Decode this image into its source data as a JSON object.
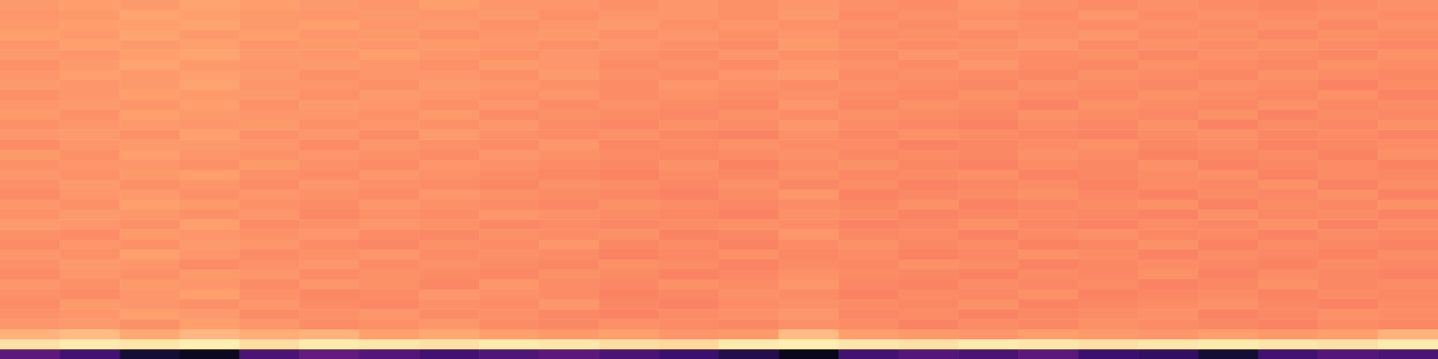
{
  "chart_data": {
    "type": "heatmap",
    "tick_labels": false,
    "zlim": [
      0,
      100
    ],
    "cells": [
      [
        28,
        22,
        10,
        6,
        24,
        30,
        26,
        22,
        25,
        28,
        24,
        20,
        14,
        5,
        22,
        26,
        24,
        28,
        20,
        18,
        10,
        22,
        26,
        24
      ],
      [
        94,
        96,
        95,
        97,
        93,
        96,
        95,
        94,
        96,
        95,
        93,
        92,
        96,
        97,
        95,
        94,
        96,
        95,
        94,
        95,
        96,
        95,
        94,
        96
      ],
      [
        84,
        86,
        82,
        85,
        83,
        84,
        80,
        82,
        80,
        79,
        80,
        78,
        79,
        86,
        80,
        79,
        78,
        80,
        79,
        78,
        80,
        79,
        80,
        84
      ],
      [
        78,
        79,
        77,
        80,
        78,
        76,
        77,
        78,
        76,
        75,
        77,
        76,
        75,
        77,
        76,
        74,
        76,
        75,
        77,
        76,
        75,
        74,
        76,
        75
      ],
      [
        77,
        78,
        80,
        79,
        76,
        77,
        78,
        76,
        77,
        75,
        74,
        76,
        77,
        78,
        75,
        76,
        74,
        75,
        76,
        77,
        74,
        75,
        77,
        76
      ],
      [
        76,
        79,
        78,
        77,
        78,
        76,
        75,
        77,
        76,
        78,
        75,
        74,
        76,
        77,
        76,
        75,
        77,
        74,
        75,
        76,
        77,
        75,
        74,
        76
      ],
      [
        77,
        76,
        78,
        80,
        77,
        75,
        76,
        78,
        77,
        76,
        74,
        75,
        77,
        76,
        74,
        76,
        75,
        77,
        74,
        75,
        76,
        74,
        76,
        75
      ],
      [
        78,
        77,
        79,
        78,
        76,
        78,
        77,
        75,
        78,
        76,
        75,
        77,
        76,
        78,
        75,
        74,
        76,
        75,
        76,
        74,
        75,
        77,
        75,
        76
      ],
      [
        76,
        78,
        77,
        79,
        78,
        76,
        77,
        76,
        75,
        77,
        76,
        74,
        75,
        77,
        76,
        75,
        74,
        76,
        75,
        77,
        74,
        76,
        75,
        74
      ],
      [
        77,
        79,
        78,
        76,
        77,
        78,
        76,
        77,
        76,
        75,
        77,
        76,
        74,
        76,
        75,
        77,
        76,
        74,
        75,
        76,
        75,
        74,
        76,
        75
      ],
      [
        78,
        77,
        80,
        78,
        76,
        77,
        78,
        76,
        77,
        76,
        74,
        75,
        77,
        75,
        76,
        74,
        75,
        77,
        76,
        74,
        76,
        75,
        74,
        76
      ],
      [
        76,
        78,
        77,
        79,
        78,
        76,
        75,
        77,
        76,
        78,
        75,
        76,
        74,
        76,
        77,
        75,
        76,
        74,
        75,
        77,
        74,
        76,
        75,
        74
      ],
      [
        77,
        76,
        79,
        78,
        77,
        78,
        76,
        75,
        77,
        76,
        77,
        74,
        75,
        78,
        75,
        76,
        74,
        76,
        77,
        75,
        76,
        74,
        76,
        75
      ],
      [
        79,
        78,
        77,
        80,
        76,
        77,
        78,
        77,
        75,
        76,
        75,
        76,
        77,
        76,
        74,
        75,
        77,
        75,
        74,
        76,
        75,
        77,
        74,
        76
      ],
      [
        77,
        79,
        78,
        77,
        78,
        75,
        77,
        76,
        78,
        77,
        76,
        75,
        74,
        77,
        76,
        74,
        75,
        76,
        75,
        74,
        77,
        75,
        76,
        74
      ],
      [
        78,
        77,
        80,
        79,
        77,
        76,
        78,
        77,
        76,
        75,
        77,
        76,
        75,
        76,
        75,
        77,
        74,
        75,
        76,
        77,
        74,
        76,
        75,
        77
      ],
      [
        76,
        78,
        79,
        77,
        78,
        77,
        76,
        78,
        77,
        76,
        75,
        74,
        76,
        78,
        74,
        75,
        76,
        77,
        75,
        74,
        76,
        75,
        77,
        74
      ],
      [
        77,
        79,
        77,
        78,
        76,
        78,
        77,
        76,
        75,
        77,
        76,
        75,
        77,
        75,
        76,
        74,
        75,
        76,
        74,
        76,
        75,
        77,
        74,
        76
      ],
      [
        78,
        77,
        79,
        80,
        77,
        76,
        78,
        77,
        76,
        75,
        74,
        76,
        75,
        77,
        75,
        76,
        77,
        74,
        75,
        76,
        77,
        74,
        76,
        75
      ],
      [
        77,
        78,
        78,
        77,
        79,
        77,
        76,
        78,
        77,
        76,
        75,
        77,
        74,
        76,
        77,
        75,
        74,
        76,
        75,
        77,
        74,
        75,
        76,
        74
      ],
      [
        79,
        77,
        80,
        78,
        77,
        78,
        77,
        76,
        78,
        77,
        76,
        75,
        76,
        77,
        75,
        76,
        75,
        77,
        76,
        74,
        75,
        76,
        74,
        77
      ],
      [
        76,
        78,
        79,
        79,
        78,
        76,
        78,
        77,
        76,
        78,
        75,
        76,
        77,
        76,
        76,
        74,
        75,
        76,
        77,
        75,
        76,
        74,
        75,
        76
      ],
      [
        78,
        79,
        77,
        80,
        77,
        78,
        76,
        79,
        77,
        76,
        77,
        75,
        74,
        77,
        75,
        77,
        76,
        75,
        74,
        76,
        77,
        75,
        76,
        74
      ],
      [
        77,
        78,
        79,
        78,
        79,
        77,
        78,
        77,
        78,
        76,
        75,
        77,
        76,
        78,
        76,
        75,
        74,
        76,
        75,
        77,
        74,
        76,
        75,
        77
      ],
      [
        79,
        77,
        80,
        79,
        78,
        78,
        77,
        79,
        76,
        77,
        76,
        75,
        77,
        76,
        77,
        76,
        75,
        77,
        76,
        75,
        77,
        74,
        76,
        75
      ],
      [
        78,
        79,
        78,
        80,
        77,
        79,
        78,
        77,
        78,
        76,
        77,
        76,
        75,
        78,
        75,
        77,
        76,
        74,
        77,
        76,
        75,
        77,
        75,
        76
      ],
      [
        77,
        78,
        80,
        79,
        79,
        77,
        79,
        78,
        77,
        78,
        76,
        77,
        76,
        77,
        76,
        75,
        77,
        76,
        75,
        77,
        76,
        75,
        77,
        74
      ],
      [
        79,
        78,
        79,
        81,
        78,
        78,
        77,
        79,
        78,
        77,
        76,
        78,
        77,
        76,
        77,
        76,
        75,
        77,
        76,
        75,
        77,
        76,
        74,
        76
      ],
      [
        78,
        80,
        79,
        80,
        79,
        77,
        78,
        78,
        77,
        79,
        77,
        76,
        78,
        79,
        76,
        77,
        76,
        75,
        77,
        76,
        75,
        77,
        76,
        75
      ],
      [
        77,
        79,
        81,
        79,
        78,
        79,
        78,
        77,
        79,
        78,
        76,
        77,
        76,
        78,
        77,
        76,
        78,
        76,
        75,
        77,
        76,
        75,
        77,
        76
      ],
      [
        79,
        78,
        80,
        81,
        79,
        78,
        80,
        78,
        77,
        78,
        77,
        76,
        78,
        77,
        76,
        78,
        77,
        76,
        77,
        75,
        77,
        76,
        75,
        77
      ],
      [
        78,
        80,
        79,
        80,
        78,
        79,
        78,
        79,
        78,
        77,
        78,
        77,
        76,
        79,
        77,
        76,
        77,
        78,
        76,
        77,
        76,
        77,
        76,
        75
      ],
      [
        80,
        79,
        81,
        79,
        80,
        78,
        79,
        77,
        78,
        79,
        77,
        78,
        77,
        78,
        76,
        77,
        76,
        77,
        78,
        76,
        77,
        75,
        77,
        76
      ],
      [
        79,
        80,
        80,
        81,
        79,
        80,
        78,
        79,
        77,
        78,
        79,
        77,
        78,
        77,
        77,
        76,
        78,
        77,
        76,
        77,
        76,
        77,
        75,
        77
      ],
      [
        78,
        79,
        81,
        80,
        79,
        78,
        79,
        78,
        79,
        77,
        78,
        78,
        77,
        79,
        76,
        77,
        77,
        76,
        78,
        76,
        77,
        76,
        77,
        76
      ],
      [
        79,
        80,
        79,
        81,
        80,
        79,
        78,
        80,
        78,
        78,
        77,
        78,
        77,
        78,
        77,
        76,
        78,
        77,
        76,
        77,
        76,
        75,
        76,
        77
      ]
    ]
  }
}
